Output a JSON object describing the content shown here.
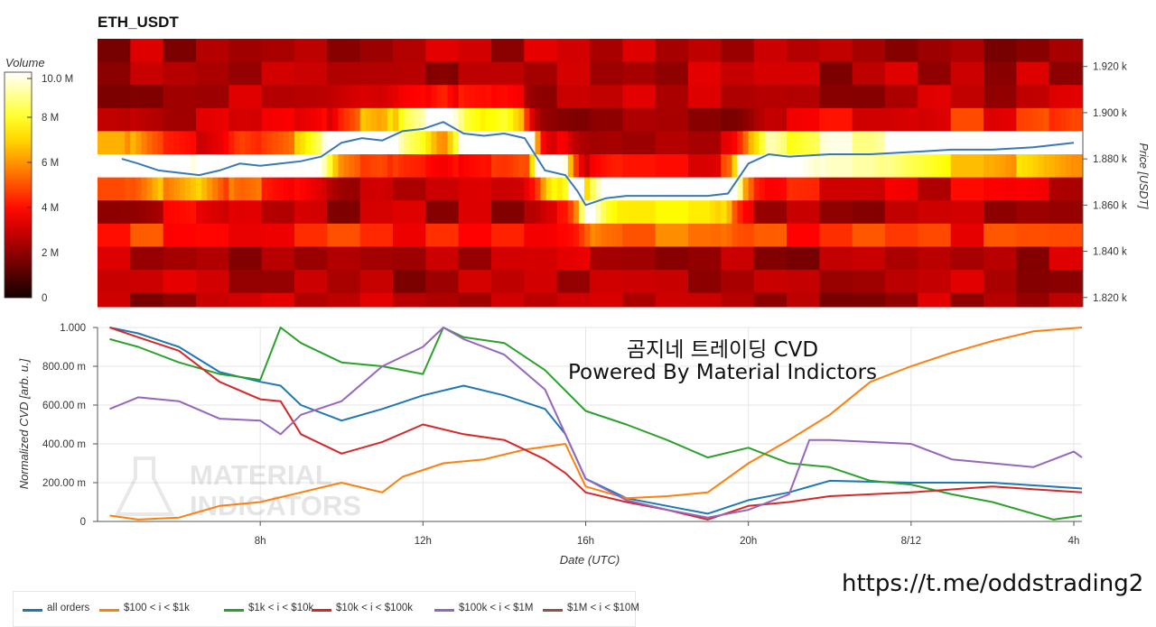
{
  "title": "ETH_USDT",
  "overlay": {
    "line1": "곰지네 트레이딩 CVD",
    "line2": "Powered By Material Indictors"
  },
  "watermark": [
    "MATERIAL",
    "INDICATORS"
  ],
  "link": "https://t.me/oddstrading2",
  "colors": {
    "all": "#1f77b4",
    "s100": "#ff7f0e",
    "s1k": "#2ca02c",
    "s10k": "#d62728",
    "s100k": "#9467bd",
    "s1m": "#8c564b"
  },
  "chart_data": [
    {
      "type": "heatmap",
      "title": "ETH_USDT",
      "colorbar": {
        "label": "Volume",
        "ticks": [
          "0",
          "2 M",
          "4 M",
          "6 M",
          "8 M",
          "10.0 M"
        ],
        "range": [
          0,
          10
        ]
      },
      "ylabel": "Price [USDT]",
      "ylim": [
        1816,
        1932
      ],
      "yticks": [
        {
          "v": 1920,
          "label": "1.920 k"
        },
        {
          "v": 1900,
          "label": "1.900 k"
        },
        {
          "v": 1880,
          "label": "1.880 k"
        },
        {
          "v": 1860,
          "label": "1.860 k"
        },
        {
          "v": 1840,
          "label": "1.840 k"
        },
        {
          "v": 1820,
          "label": "1.820 k"
        }
      ],
      "bins": [
        1932,
        1922,
        1912,
        1902,
        1892,
        1882,
        1872,
        1862,
        1852,
        1842,
        1832,
        1822,
        1816
      ],
      "price_points": [
        [
          4.6,
          1880
        ],
        [
          5.0,
          1878
        ],
        [
          5.5,
          1875
        ],
        [
          6.0,
          1874
        ],
        [
          6.5,
          1873
        ],
        [
          7.0,
          1875
        ],
        [
          7.5,
          1878
        ],
        [
          8.0,
          1877
        ],
        [
          8.5,
          1878
        ],
        [
          9.0,
          1879
        ],
        [
          9.5,
          1881
        ],
        [
          10.0,
          1887
        ],
        [
          10.5,
          1889
        ],
        [
          11.0,
          1888
        ],
        [
          11.5,
          1892
        ],
        [
          12.0,
          1893
        ],
        [
          12.5,
          1896
        ],
        [
          13.0,
          1891
        ],
        [
          13.5,
          1890
        ],
        [
          14.0,
          1891
        ],
        [
          14.5,
          1889
        ],
        [
          15.0,
          1875
        ],
        [
          15.5,
          1873
        ],
        [
          15.8,
          1866
        ],
        [
          16.0,
          1860
        ],
        [
          16.5,
          1863
        ],
        [
          17.0,
          1864
        ],
        [
          17.5,
          1864
        ],
        [
          18.0,
          1864
        ],
        [
          18.5,
          1864
        ],
        [
          19.0,
          1864
        ],
        [
          19.5,
          1865
        ],
        [
          20.0,
          1878
        ],
        [
          20.5,
          1882
        ],
        [
          21.0,
          1881
        ],
        [
          22.0,
          1882
        ],
        [
          23.0,
          1882
        ],
        [
          24.0,
          1883
        ],
        [
          25.0,
          1884
        ],
        [
          26.0,
          1884
        ],
        [
          27.0,
          1885
        ],
        [
          28.0,
          1887
        ]
      ]
    },
    {
      "type": "line",
      "xlabel": "Date (UTC)",
      "ylabel": "Normalized CVD [arb. u.]",
      "xlim": [
        4,
        28.2
      ],
      "ylim": [
        0,
        1
      ],
      "xticks": [
        {
          "v": 8,
          "label": "8h"
        },
        {
          "v": 12,
          "label": "12h"
        },
        {
          "v": 16,
          "label": "16h"
        },
        {
          "v": 20,
          "label": "20h"
        },
        {
          "v": 24,
          "label": "8/12"
        },
        {
          "v": 28,
          "label": "4h"
        }
      ],
      "yticks": [
        {
          "v": 0,
          "label": "0"
        },
        {
          "v": 0.2,
          "label": "200.00 m"
        },
        {
          "v": 0.4,
          "label": "400.00 m"
        },
        {
          "v": 0.6,
          "label": "600.00 m"
        },
        {
          "v": 0.8,
          "label": "800.00 m"
        },
        {
          "v": 1.0,
          "label": "1.000"
        }
      ],
      "grid": true,
      "legend": "bottom-left",
      "series": [
        {
          "name": "all orders",
          "color": "#1f77b4",
          "points": [
            [
              4.3,
              1.0
            ],
            [
              5.0,
              0.97
            ],
            [
              6.0,
              0.9
            ],
            [
              7.0,
              0.77
            ],
            [
              8.0,
              0.72
            ],
            [
              8.5,
              0.7
            ],
            [
              9.0,
              0.6
            ],
            [
              10.0,
              0.52
            ],
            [
              11.0,
              0.58
            ],
            [
              12.0,
              0.65
            ],
            [
              13.0,
              0.7
            ],
            [
              14.0,
              0.65
            ],
            [
              15.0,
              0.58
            ],
            [
              15.5,
              0.45
            ],
            [
              16.0,
              0.22
            ],
            [
              17.0,
              0.12
            ],
            [
              18.0,
              0.08
            ],
            [
              19.0,
              0.04
            ],
            [
              20.0,
              0.11
            ],
            [
              21.0,
              0.15
            ],
            [
              22.0,
              0.21
            ],
            [
              24.0,
              0.2
            ],
            [
              26.0,
              0.2
            ],
            [
              28.2,
              0.17
            ]
          ]
        },
        {
          "name": "$100 < i < $1k",
          "color": "#ff7f0e",
          "points": [
            [
              4.3,
              0.03
            ],
            [
              5.0,
              0.01
            ],
            [
              6.0,
              0.02
            ],
            [
              7.0,
              0.08
            ],
            [
              8.0,
              0.1
            ],
            [
              9.0,
              0.15
            ],
            [
              10.0,
              0.2
            ],
            [
              11.0,
              0.15
            ],
            [
              11.5,
              0.23
            ],
            [
              12.5,
              0.3
            ],
            [
              13.5,
              0.32
            ],
            [
              14.5,
              0.37
            ],
            [
              15.5,
              0.4
            ],
            [
              16.0,
              0.18
            ],
            [
              17.0,
              0.12
            ],
            [
              18.0,
              0.13
            ],
            [
              19.0,
              0.15
            ],
            [
              20.0,
              0.3
            ],
            [
              21.0,
              0.42
            ],
            [
              22.0,
              0.55
            ],
            [
              23.0,
              0.72
            ],
            [
              24.0,
              0.8
            ],
            [
              25.0,
              0.87
            ],
            [
              26.0,
              0.93
            ],
            [
              27.0,
              0.98
            ],
            [
              28.2,
              1.0
            ]
          ]
        },
        {
          "name": "$1k < i < $10k",
          "color": "#2ca02c",
          "points": [
            [
              4.3,
              0.94
            ],
            [
              5.0,
              0.9
            ],
            [
              6.0,
              0.82
            ],
            [
              7.0,
              0.76
            ],
            [
              8.0,
              0.73
            ],
            [
              8.5,
              1.0
            ],
            [
              9.0,
              0.92
            ],
            [
              10.0,
              0.82
            ],
            [
              11.0,
              0.8
            ],
            [
              12.0,
              0.76
            ],
            [
              12.5,
              1.0
            ],
            [
              13.0,
              0.95
            ],
            [
              14.0,
              0.92
            ],
            [
              15.0,
              0.78
            ],
            [
              16.0,
              0.57
            ],
            [
              17.0,
              0.5
            ],
            [
              18.0,
              0.42
            ],
            [
              19.0,
              0.33
            ],
            [
              20.0,
              0.38
            ],
            [
              21.0,
              0.3
            ],
            [
              22.0,
              0.28
            ],
            [
              23.0,
              0.21
            ],
            [
              24.0,
              0.19
            ],
            [
              25.0,
              0.14
            ],
            [
              26.0,
              0.1
            ],
            [
              27.0,
              0.04
            ],
            [
              27.5,
              0.01
            ],
            [
              28.2,
              0.03
            ]
          ]
        },
        {
          "name": "$10k < i < $100k",
          "color": "#d62728",
          "points": [
            [
              4.3,
              1.0
            ],
            [
              5.0,
              0.95
            ],
            [
              6.0,
              0.88
            ],
            [
              7.0,
              0.72
            ],
            [
              8.0,
              0.63
            ],
            [
              8.5,
              0.62
            ],
            [
              9.0,
              0.45
            ],
            [
              10.0,
              0.35
            ],
            [
              11.0,
              0.41
            ],
            [
              12.0,
              0.5
            ],
            [
              13.0,
              0.45
            ],
            [
              14.0,
              0.42
            ],
            [
              15.0,
              0.32
            ],
            [
              15.5,
              0.25
            ],
            [
              16.0,
              0.15
            ],
            [
              17.0,
              0.1
            ],
            [
              18.0,
              0.06
            ],
            [
              19.0,
              0.01
            ],
            [
              20.0,
              0.08
            ],
            [
              21.0,
              0.1
            ],
            [
              22.0,
              0.13
            ],
            [
              24.0,
              0.15
            ],
            [
              26.0,
              0.18
            ],
            [
              28.2,
              0.15
            ]
          ]
        },
        {
          "name": "$100k < i < $1M",
          "color": "#9467bd",
          "points": [
            [
              4.3,
              0.58
            ],
            [
              5.0,
              0.64
            ],
            [
              6.0,
              0.62
            ],
            [
              7.0,
              0.53
            ],
            [
              8.0,
              0.52
            ],
            [
              8.5,
              0.45
            ],
            [
              9.0,
              0.55
            ],
            [
              10.0,
              0.62
            ],
            [
              11.0,
              0.8
            ],
            [
              12.0,
              0.9
            ],
            [
              12.5,
              1.0
            ],
            [
              13.0,
              0.94
            ],
            [
              14.0,
              0.86
            ],
            [
              15.0,
              0.68
            ],
            [
              15.5,
              0.45
            ],
            [
              16.0,
              0.22
            ],
            [
              17.0,
              0.11
            ],
            [
              18.0,
              0.06
            ],
            [
              19.0,
              0.02
            ],
            [
              20.0,
              0.06
            ],
            [
              21.0,
              0.14
            ],
            [
              21.5,
              0.42
            ],
            [
              22.0,
              0.42
            ],
            [
              24.0,
              0.4
            ],
            [
              25.0,
              0.32
            ],
            [
              26.0,
              0.3
            ],
            [
              27.0,
              0.28
            ],
            [
              28.0,
              0.36
            ],
            [
              28.2,
              0.33
            ]
          ]
        },
        {
          "name": "$1M < i < $10M",
          "color": "#8c564b",
          "points": []
        }
      ]
    }
  ]
}
